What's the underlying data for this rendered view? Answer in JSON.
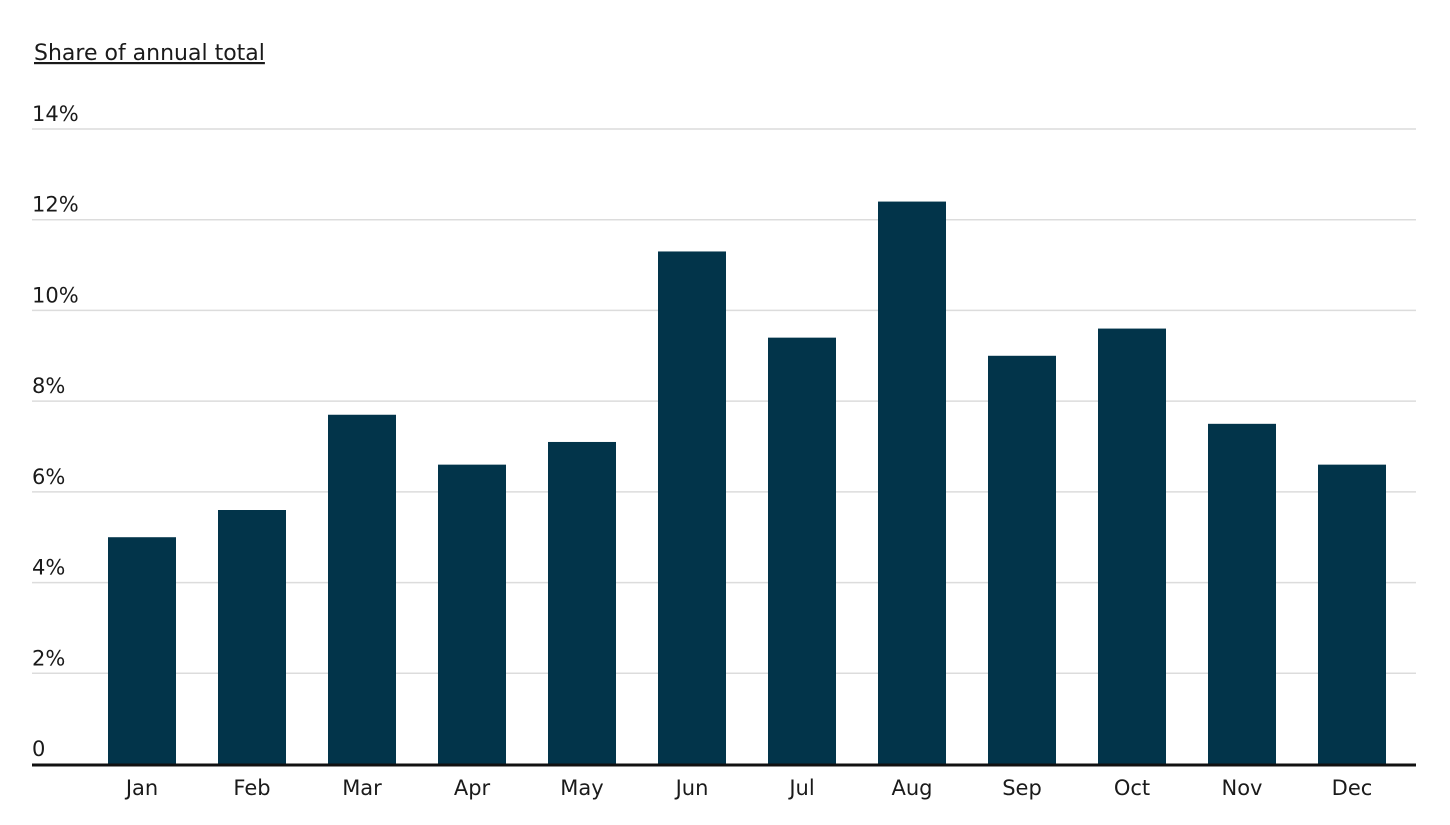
{
  "chart_data": {
    "type": "bar",
    "ylabel": "Share of annual total",
    "categories": [
      "Jan",
      "Feb",
      "Mar",
      "Apr",
      "May",
      "Jun",
      "Jul",
      "Aug",
      "Sep",
      "Oct",
      "Nov",
      "Dec"
    ],
    "values": [
      5.0,
      5.6,
      7.7,
      6.6,
      7.1,
      11.3,
      9.4,
      12.4,
      9.0,
      9.6,
      7.5,
      6.6
    ],
    "ylim": [
      0,
      14
    ],
    "yticks": [
      0,
      2,
      4,
      6,
      8,
      10,
      12,
      14
    ],
    "ytick_labels": [
      "0",
      "2%",
      "4%",
      "6%",
      "8%",
      "10%",
      "12%",
      "14%"
    ],
    "grid": true,
    "bar_color": "#02344a"
  }
}
